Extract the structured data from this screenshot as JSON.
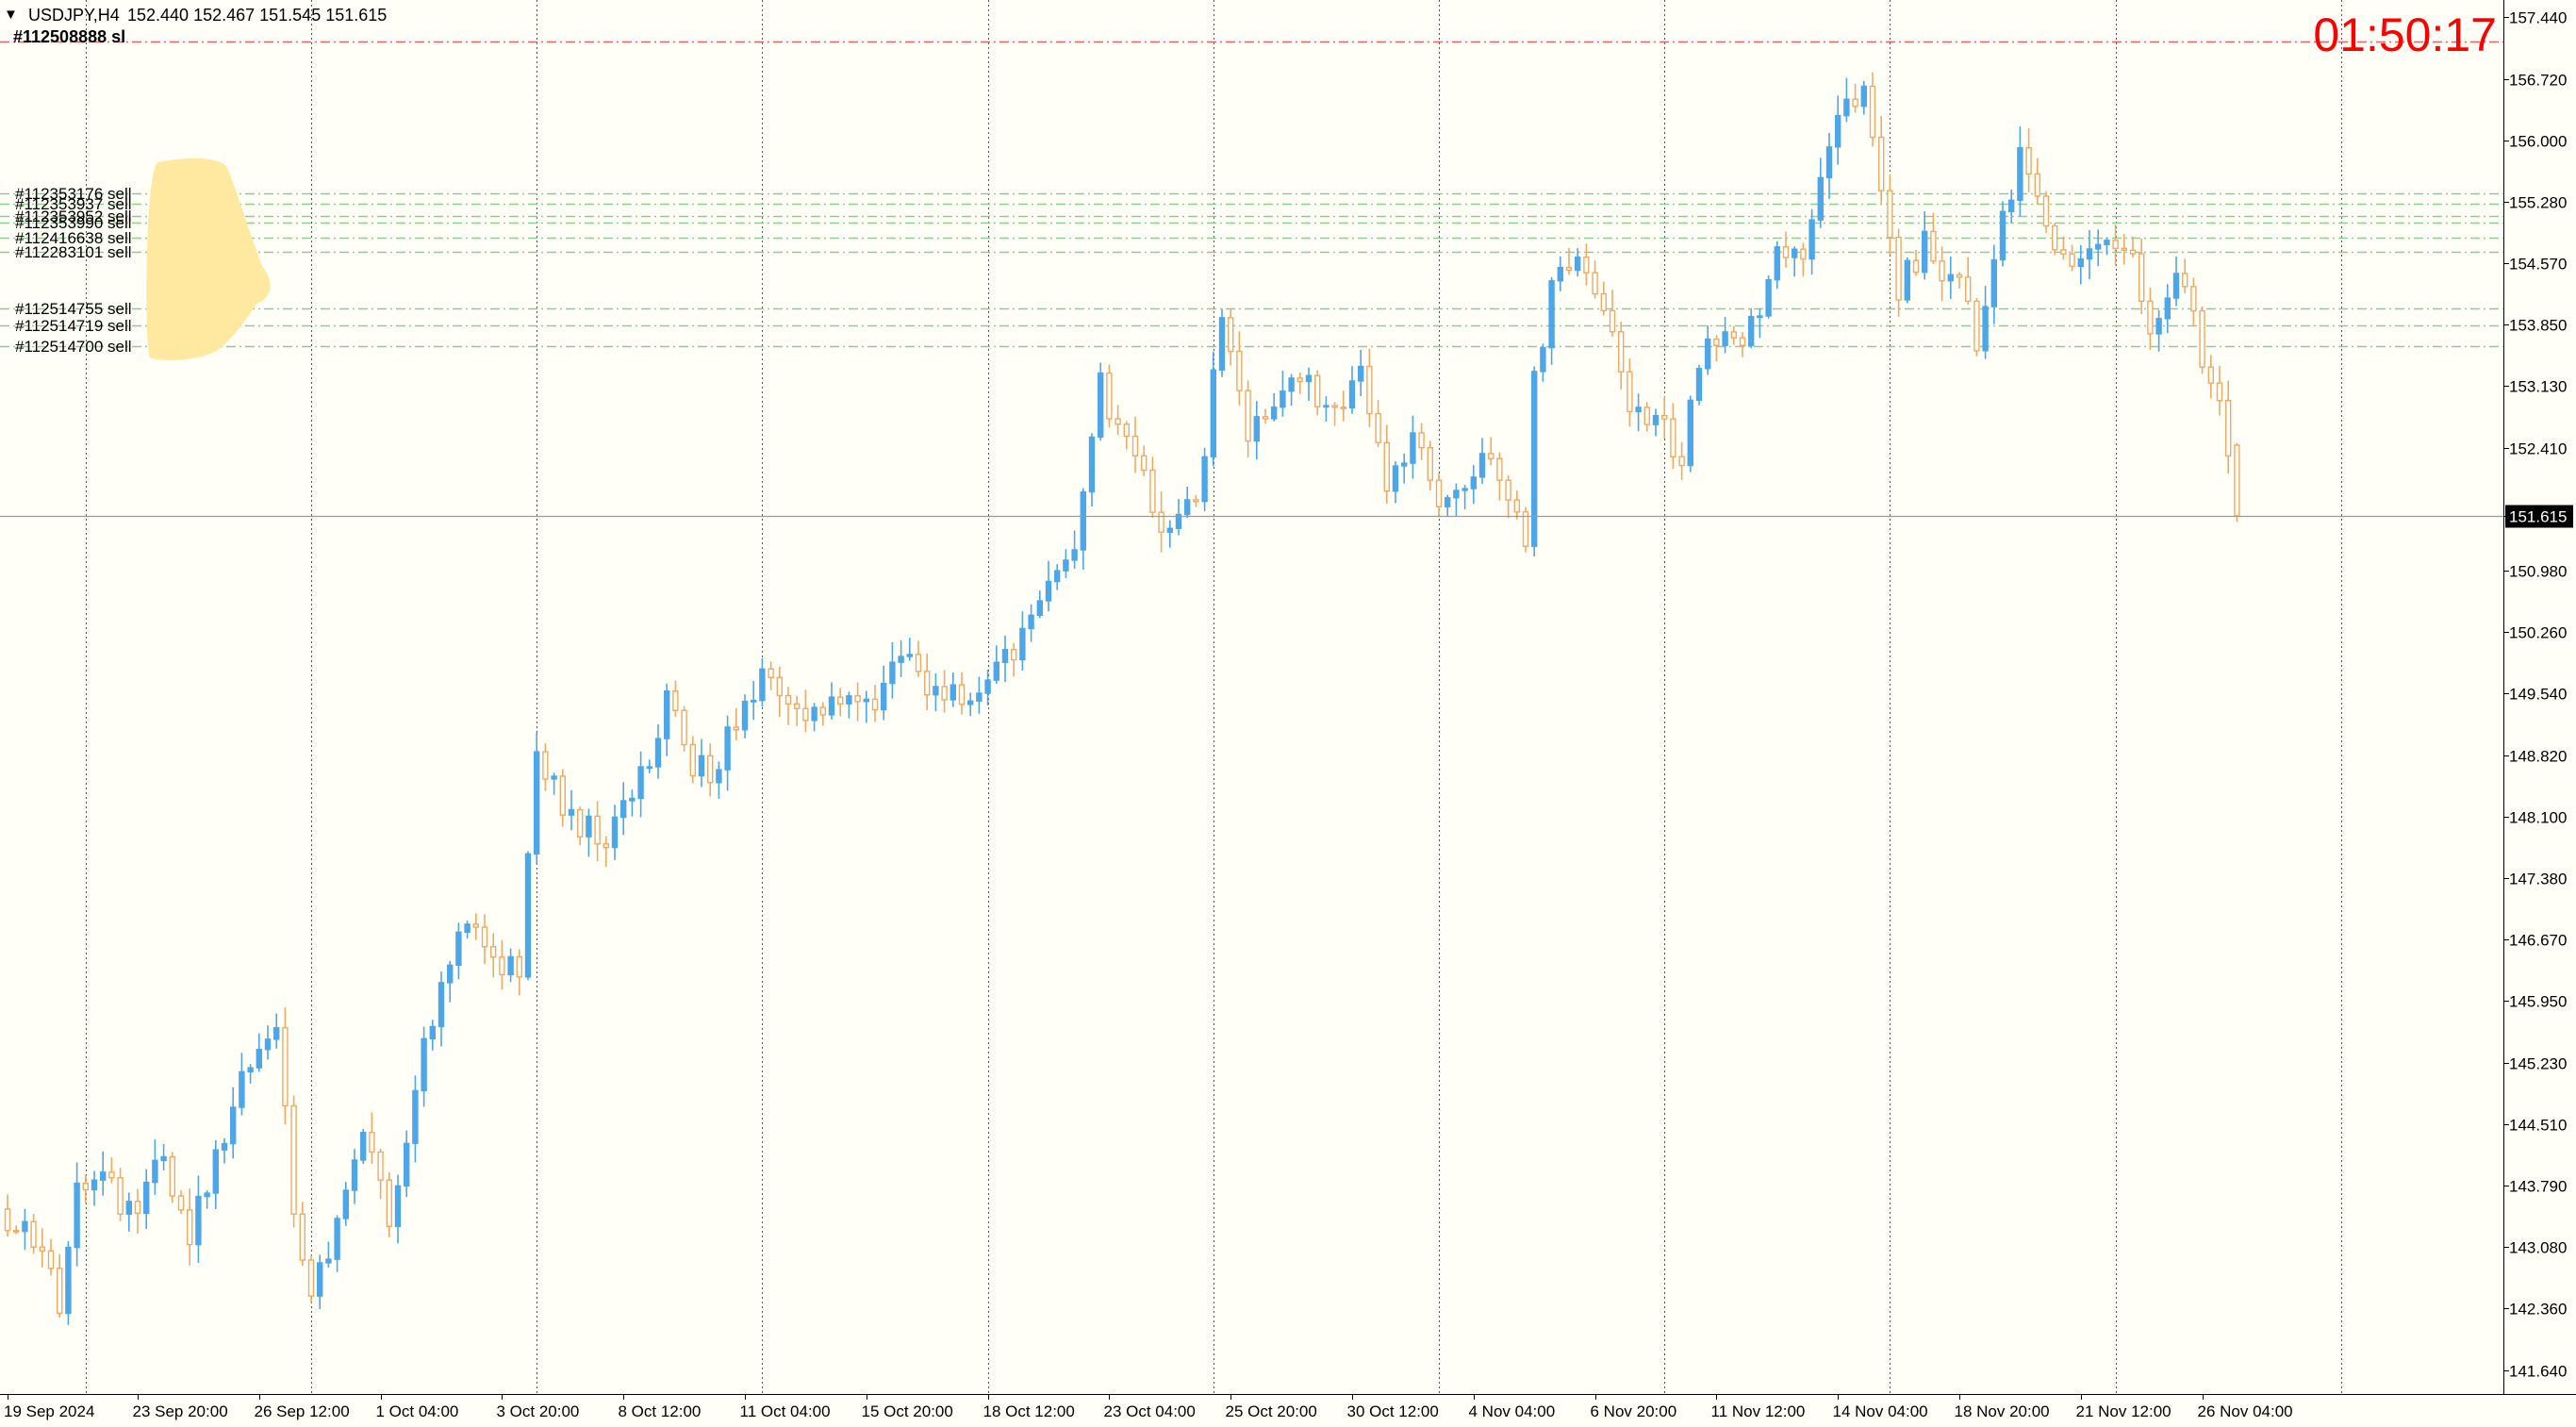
{
  "header": {
    "dropdown_glyph": "▼",
    "symbol": "USDJPY,H4",
    "ohlc": "152.440 152.467 151.545 151.615",
    "overlap_label": "#112508888 sl"
  },
  "countdown": "01:50:17",
  "colors": {
    "background": "#FFFFF8",
    "bull": "#4DA6E8",
    "bear": "#F0A866",
    "grid": "#555555",
    "order_line": "#8FCC8F",
    "stop_line": "#E06666",
    "countdown": "#FF0000",
    "price_tag_bg": "#000000"
  },
  "orders": [
    {
      "label": "#112353176 sell",
      "price": 155.38
    },
    {
      "label": "#112353937 sell",
      "price": 155.26
    },
    {
      "label": "#112353952 sell",
      "price": 155.12
    },
    {
      "label": "#112353990 sell",
      "price": 155.04
    },
    {
      "label": "#112416638 sell",
      "price": 154.86
    },
    {
      "label": "#112283101 sell",
      "price": 154.7
    },
    {
      "label": "#112514755 sell",
      "price": 154.04
    },
    {
      "label": "#112514719 sell",
      "price": 153.84
    },
    {
      "label": "#112514700 sell",
      "price": 153.6
    }
  ],
  "chart_data": {
    "type": "candlestick",
    "symbol": "USDJPY",
    "timeframe": "H4",
    "current_price": 151.615,
    "stop_line_price": 157.15,
    "ylim": [
      141.36,
      157.64
    ],
    "y_ticks": [
      "157.440",
      "156.720",
      "156.000",
      "155.280",
      "154.570",
      "153.850",
      "153.130",
      "152.410",
      "151.615",
      "150.980",
      "150.260",
      "149.540",
      "148.820",
      "148.100",
      "147.380",
      "146.670",
      "145.950",
      "145.230",
      "144.510",
      "143.790",
      "143.080",
      "142.360",
      "141.640"
    ],
    "x_labels": [
      "19 Sep 2024",
      "23 Sep 20:00",
      "26 Sep 12:00",
      "1 Oct 04:00",
      "3 Oct 20:00",
      "8 Oct 12:00",
      "11 Oct 04:00",
      "15 Oct 20:00",
      "18 Oct 12:00",
      "23 Oct 04:00",
      "25 Oct 20:00",
      "30 Oct 12:00",
      "4 Nov 04:00",
      "6 Nov 20:00",
      "11 Nov 12:00",
      "14 Nov 04:00",
      "18 Nov 20:00",
      "21 Nov 12:00",
      "26 Nov 04:00"
    ],
    "x_label_bars": [
      0,
      15,
      29,
      43,
      57,
      71,
      85,
      99,
      113,
      127,
      141,
      155,
      169,
      183,
      197,
      211,
      225,
      239,
      253
    ],
    "separator_bars": [
      9,
      35,
      61,
      87,
      113,
      139,
      165,
      191,
      217,
      243,
      269
    ],
    "anchors": [
      [
        0,
        143.4
      ],
      [
        4,
        143.0
      ],
      [
        6,
        142.3
      ],
      [
        8,
        143.8
      ],
      [
        11,
        143.9
      ],
      [
        14,
        143.5
      ],
      [
        18,
        144.1
      ],
      [
        21,
        143.2
      ],
      [
        25,
        144.4
      ],
      [
        28,
        145.2
      ],
      [
        31,
        145.8
      ],
      [
        33,
        143.3
      ],
      [
        35,
        142.5
      ],
      [
        37,
        143.1
      ],
      [
        41,
        144.3
      ],
      [
        44,
        143.4
      ],
      [
        49,
        145.8
      ],
      [
        52,
        146.9
      ],
      [
        56,
        146.5
      ],
      [
        59,
        146.3
      ],
      [
        61,
        148.9
      ],
      [
        64,
        148.3
      ],
      [
        68,
        147.8
      ],
      [
        72,
        148.3
      ],
      [
        76,
        149.4
      ],
      [
        79,
        148.7
      ],
      [
        81,
        148.6
      ],
      [
        84,
        149.2
      ],
      [
        88,
        149.9
      ],
      [
        92,
        149.1
      ],
      [
        96,
        149.6
      ],
      [
        100,
        149.4
      ],
      [
        103,
        150.1
      ],
      [
        106,
        149.7
      ],
      [
        111,
        149.3
      ],
      [
        115,
        149.9
      ],
      [
        119,
        150.7
      ],
      [
        123,
        151.3
      ],
      [
        126,
        153.1
      ],
      [
        129,
        152.4
      ],
      [
        133,
        151.6
      ],
      [
        137,
        151.8
      ],
      [
        140,
        153.8
      ],
      [
        143,
        152.6
      ],
      [
        148,
        153.3
      ],
      [
        153,
        152.8
      ],
      [
        156,
        153.4
      ],
      [
        159,
        151.9
      ],
      [
        162,
        152.6
      ],
      [
        165,
        151.7
      ],
      [
        168,
        151.9
      ],
      [
        171,
        152.3
      ],
      [
        174,
        151.5
      ],
      [
        175,
        151.2
      ],
      [
        176,
        153.2
      ],
      [
        178,
        154.3
      ],
      [
        181,
        154.6
      ],
      [
        184,
        154.0
      ],
      [
        187,
        152.9
      ],
      [
        190,
        152.8
      ],
      [
        193,
        152.2
      ],
      [
        195,
        153.4
      ],
      [
        198,
        153.7
      ],
      [
        201,
        153.8
      ],
      [
        204,
        154.6
      ],
      [
        207,
        154.7
      ],
      [
        210,
        155.9
      ],
      [
        213,
        156.5
      ],
      [
        214,
        156.7
      ],
      [
        216,
        155.3
      ],
      [
        218,
        154.3
      ],
      [
        221,
        154.8
      ],
      [
        225,
        154.3
      ],
      [
        227,
        153.7
      ],
      [
        230,
        155.0
      ],
      [
        232,
        155.8
      ],
      [
        234,
        155.5
      ],
      [
        236,
        154.6
      ],
      [
        238,
        154.4
      ],
      [
        242,
        154.7
      ],
      [
        245,
        154.6
      ],
      [
        247,
        153.9
      ],
      [
        250,
        154.5
      ],
      [
        254,
        153.2
      ],
      [
        256,
        152.4
      ],
      [
        257,
        151.6
      ]
    ],
    "last_candle": {
      "open": 152.44,
      "high": 152.467,
      "low": 151.545,
      "close": 151.615
    }
  }
}
